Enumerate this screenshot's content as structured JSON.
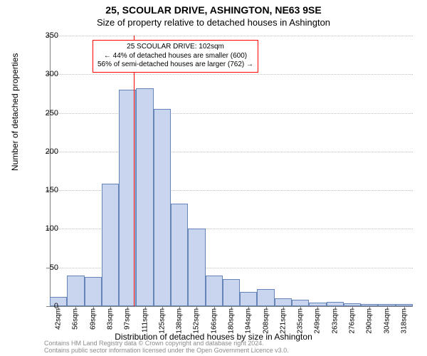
{
  "title_main": "25, SCOULAR DRIVE, ASHINGTON, NE63 9SE",
  "title_sub": "Size of property relative to detached houses in Ashington",
  "ylabel": "Number of detached properties",
  "xlabel": "Distribution of detached houses by size in Ashington",
  "footer_line1": "Contains HM Land Registry data © Crown copyright and database right 2024.",
  "footer_line2": "Contains public sector information licensed under the Open Government Licence v3.0.",
  "annotation": {
    "line1": "25 SCOULAR DRIVE: 102sqm",
    "line2": "← 44% of detached houses are smaller (600)",
    "line3": "56% of semi-detached houses are larger (762) →"
  },
  "marker_x_sqm": 102,
  "chart": {
    "type": "histogram",
    "bar_fill": "#c9d4ef",
    "bar_border": "#6585b8",
    "grid_color": "#bfbfbf",
    "axis_color": "#808080",
    "background_color": "#ffffff",
    "marker_color": "#ff0000",
    "annot_border": "#ff0000",
    "title_fontsize": 14,
    "subtitle_fontsize": 13,
    "label_fontsize": 12,
    "tick_fontsize": 11,
    "xtick_fontsize": 10,
    "annot_fontsize": 10,
    "footer_fontsize": 9,
    "footer_color": "#8c8c8c",
    "ylim": [
      0,
      350
    ],
    "ytick_step": 50,
    "x_start": 35,
    "x_bin_width": 13.75,
    "xtick_labels": [
      "42sqm",
      "56sqm",
      "69sqm",
      "83sqm",
      "97sqm",
      "111sqm",
      "125sqm",
      "138sqm",
      "152sqm",
      "166sqm",
      "180sqm",
      "194sqm",
      "208sqm",
      "221sqm",
      "235sqm",
      "249sqm",
      "263sqm",
      "276sqm",
      "290sqm",
      "304sqm",
      "318sqm"
    ],
    "bar_values": [
      12,
      40,
      38,
      158,
      280,
      282,
      255,
      133,
      100,
      40,
      35,
      18,
      22,
      10,
      8,
      5,
      6,
      4,
      3,
      3,
      3
    ]
  }
}
